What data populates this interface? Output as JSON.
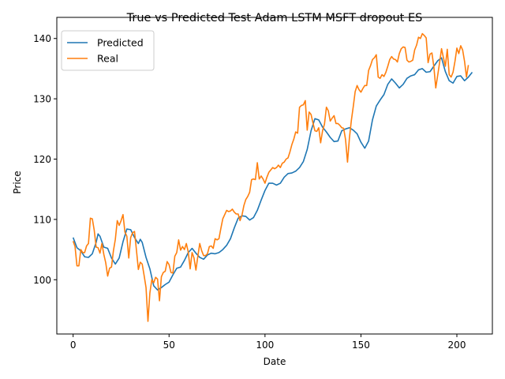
{
  "chart_data": {
    "type": "line",
    "title": "True vs Predicted Test  Adam LSTM MSFT dropout ES",
    "xlabel": "Date",
    "ylabel": "Price",
    "xlim": [
      -8.5,
      218.5
    ],
    "ylim": [
      91.0,
      143.5
    ],
    "xticks": [
      0,
      50,
      100,
      150,
      200
    ],
    "yticks": [
      100,
      110,
      120,
      130,
      140
    ],
    "grid": false,
    "legend_position": "upper-left",
    "colors": {
      "predicted": "#1f77b4",
      "real": "#ff7f0e"
    },
    "series": [
      {
        "name": "Predicted",
        "color": "#1f77b4",
        "points": [
          [
            0,
            107.0
          ],
          [
            2,
            105.3
          ],
          [
            4,
            104.8
          ],
          [
            6,
            103.8
          ],
          [
            8,
            103.7
          ],
          [
            10,
            104.3
          ],
          [
            12,
            106.2
          ],
          [
            13,
            107.6
          ],
          [
            14,
            107.2
          ],
          [
            16,
            105.4
          ],
          [
            18,
            105.2
          ],
          [
            20,
            103.6
          ],
          [
            22,
            102.6
          ],
          [
            24,
            103.6
          ],
          [
            26,
            106.3
          ],
          [
            28,
            108.4
          ],
          [
            30,
            108.3
          ],
          [
            32,
            107.0
          ],
          [
            34,
            106.0
          ],
          [
            35,
            106.7
          ],
          [
            36,
            106.2
          ],
          [
            38,
            103.7
          ],
          [
            40,
            101.8
          ],
          [
            42,
            99.0
          ],
          [
            44,
            98.3
          ],
          [
            46,
            98.7
          ],
          [
            48,
            99.2
          ],
          [
            50,
            99.6
          ],
          [
            52,
            100.8
          ],
          [
            54,
            101.9
          ],
          [
            56,
            102.1
          ],
          [
            58,
            103.2
          ],
          [
            60,
            104.5
          ],
          [
            62,
            105.2
          ],
          [
            64,
            104.4
          ],
          [
            66,
            103.7
          ],
          [
            68,
            103.4
          ],
          [
            70,
            104.1
          ],
          [
            72,
            104.4
          ],
          [
            74,
            104.3
          ],
          [
            76,
            104.5
          ],
          [
            78,
            105.0
          ],
          [
            80,
            105.7
          ],
          [
            82,
            106.8
          ],
          [
            84,
            108.6
          ],
          [
            86,
            110.2
          ],
          [
            88,
            110.6
          ],
          [
            90,
            110.5
          ],
          [
            92,
            109.9
          ],
          [
            94,
            110.3
          ],
          [
            96,
            111.5
          ],
          [
            98,
            113.2
          ],
          [
            100,
            114.8
          ],
          [
            102,
            116.0
          ],
          [
            104,
            116.0
          ],
          [
            106,
            115.7
          ],
          [
            108,
            116.0
          ],
          [
            110,
            117.0
          ],
          [
            112,
            117.6
          ],
          [
            114,
            117.7
          ],
          [
            116,
            118.0
          ],
          [
            118,
            118.6
          ],
          [
            120,
            119.6
          ],
          [
            122,
            121.6
          ],
          [
            124,
            124.7
          ],
          [
            126,
            126.7
          ],
          [
            128,
            126.5
          ],
          [
            130,
            125.3
          ],
          [
            132,
            124.5
          ],
          [
            134,
            123.6
          ],
          [
            136,
            122.9
          ],
          [
            138,
            123.0
          ],
          [
            140,
            124.7
          ],
          [
            142,
            125.0
          ],
          [
            144,
            125.2
          ],
          [
            146,
            124.8
          ],
          [
            148,
            124.2
          ],
          [
            150,
            122.8
          ],
          [
            152,
            121.8
          ],
          [
            154,
            123.0
          ],
          [
            156,
            126.5
          ],
          [
            158,
            128.8
          ],
          [
            160,
            129.8
          ],
          [
            162,
            130.7
          ],
          [
            164,
            132.4
          ],
          [
            166,
            133.3
          ],
          [
            168,
            132.6
          ],
          [
            170,
            131.8
          ],
          [
            172,
            132.4
          ],
          [
            174,
            133.4
          ],
          [
            176,
            133.8
          ],
          [
            178,
            134.0
          ],
          [
            180,
            134.8
          ],
          [
            182,
            135.0
          ],
          [
            184,
            134.4
          ],
          [
            186,
            134.5
          ],
          [
            188,
            135.4
          ],
          [
            190,
            136.3
          ],
          [
            192,
            136.8
          ],
          [
            194,
            134.5
          ],
          [
            196,
            133.0
          ],
          [
            198,
            132.6
          ],
          [
            200,
            133.7
          ],
          [
            202,
            133.8
          ],
          [
            204,
            133.0
          ],
          [
            206,
            133.6
          ],
          [
            208,
            134.4
          ]
        ]
      },
      {
        "name": "Real",
        "color": "#ff7f0e",
        "points": [
          [
            0,
            106.4
          ],
          [
            1,
            105.5
          ],
          [
            2,
            102.3
          ],
          [
            3,
            102.3
          ],
          [
            4,
            105.0
          ],
          [
            5,
            104.5
          ],
          [
            6,
            104.5
          ],
          [
            7,
            105.6
          ],
          [
            8,
            106.0
          ],
          [
            9,
            110.2
          ],
          [
            10,
            110.1
          ],
          [
            11,
            108.2
          ],
          [
            12,
            105.4
          ],
          [
            13,
            105.3
          ],
          [
            14,
            104.4
          ],
          [
            15,
            106.0
          ],
          [
            16,
            104.2
          ],
          [
            17,
            102.8
          ],
          [
            18,
            100.6
          ],
          [
            19,
            101.9
          ],
          [
            20,
            102.1
          ],
          [
            21,
            104.8
          ],
          [
            22,
            106.7
          ],
          [
            23,
            109.8
          ],
          [
            24,
            109.0
          ],
          [
            25,
            109.8
          ],
          [
            26,
            110.8
          ],
          [
            27,
            107.9
          ],
          [
            28,
            107.2
          ],
          [
            29,
            103.6
          ],
          [
            30,
            107.0
          ],
          [
            31,
            107.8
          ],
          [
            32,
            108.0
          ],
          [
            33,
            104.9
          ],
          [
            34,
            101.7
          ],
          [
            35,
            102.9
          ],
          [
            36,
            102.6
          ],
          [
            37,
            100.7
          ],
          [
            38,
            98.7
          ],
          [
            39,
            93.1
          ],
          [
            40,
            97.8
          ],
          [
            41,
            100.0
          ],
          [
            42,
            99.5
          ],
          [
            43,
            100.4
          ],
          [
            44,
            100.1
          ],
          [
            45,
            96.5
          ],
          [
            46,
            100.5
          ],
          [
            47,
            101.2
          ],
          [
            48,
            101.4
          ],
          [
            49,
            103.0
          ],
          [
            50,
            102.5
          ],
          [
            51,
            101.2
          ],
          [
            52,
            101.1
          ],
          [
            53,
            103.9
          ],
          [
            54,
            104.5
          ],
          [
            55,
            106.6
          ],
          [
            56,
            104.9
          ],
          [
            57,
            105.5
          ],
          [
            58,
            105.0
          ],
          [
            59,
            106.0
          ],
          [
            60,
            104.6
          ],
          [
            61,
            101.8
          ],
          [
            62,
            104.5
          ],
          [
            63,
            103.6
          ],
          [
            64,
            101.6
          ],
          [
            65,
            103.9
          ],
          [
            66,
            106.0
          ],
          [
            67,
            104.8
          ],
          [
            68,
            104.0
          ],
          [
            69,
            104.0
          ],
          [
            70,
            104.3
          ],
          [
            71,
            105.5
          ],
          [
            72,
            105.6
          ],
          [
            73,
            105.2
          ],
          [
            74,
            106.8
          ],
          [
            75,
            106.6
          ],
          [
            76,
            106.8
          ],
          [
            77,
            108.5
          ],
          [
            78,
            110.1
          ],
          [
            79,
            110.8
          ],
          [
            80,
            111.5
          ],
          [
            81,
            111.3
          ],
          [
            82,
            111.4
          ],
          [
            83,
            111.7
          ],
          [
            84,
            111.2
          ],
          [
            85,
            110.9
          ],
          [
            86,
            110.9
          ],
          [
            87,
            109.8
          ],
          [
            88,
            110.7
          ],
          [
            89,
            112.3
          ],
          [
            90,
            113.3
          ],
          [
            91,
            113.8
          ],
          [
            92,
            114.5
          ],
          [
            93,
            116.6
          ],
          [
            94,
            116.7
          ],
          [
            95,
            116.6
          ],
          [
            96,
            119.4
          ],
          [
            97,
            116.7
          ],
          [
            98,
            117.2
          ],
          [
            99,
            116.7
          ],
          [
            100,
            116.0
          ],
          [
            101,
            117.0
          ],
          [
            102,
            117.8
          ],
          [
            103,
            118.2
          ],
          [
            104,
            118.6
          ],
          [
            105,
            118.4
          ],
          [
            106,
            118.6
          ],
          [
            107,
            119.0
          ],
          [
            108,
            118.6
          ],
          [
            109,
            119.3
          ],
          [
            110,
            119.5
          ],
          [
            111,
            120.0
          ],
          [
            112,
            120.2
          ],
          [
            113,
            121.2
          ],
          [
            114,
            122.4
          ],
          [
            115,
            123.3
          ],
          [
            116,
            124.5
          ],
          [
            117,
            124.3
          ],
          [
            118,
            128.6
          ],
          [
            119,
            128.9
          ],
          [
            120,
            129.0
          ],
          [
            121,
            129.7
          ],
          [
            122,
            124.8
          ],
          [
            123,
            127.8
          ],
          [
            124,
            127.4
          ],
          [
            125,
            126.0
          ],
          [
            126,
            124.7
          ],
          [
            127,
            124.6
          ],
          [
            128,
            125.2
          ],
          [
            129,
            122.7
          ],
          [
            130,
            124.7
          ],
          [
            131,
            125.8
          ],
          [
            132,
            128.6
          ],
          [
            133,
            128.0
          ],
          [
            134,
            126.3
          ],
          [
            135,
            126.8
          ],
          [
            136,
            127.2
          ],
          [
            137,
            125.9
          ],
          [
            138,
            125.9
          ],
          [
            139,
            125.6
          ],
          [
            140,
            125.2
          ],
          [
            141,
            125.1
          ],
          [
            142,
            123.2
          ],
          [
            143,
            119.5
          ],
          [
            144,
            123.5
          ],
          [
            145,
            126.4
          ],
          [
            146,
            128.7
          ],
          [
            147,
            131.2
          ],
          [
            148,
            132.2
          ],
          [
            149,
            131.5
          ],
          [
            150,
            131.1
          ],
          [
            151,
            131.7
          ],
          [
            152,
            132.2
          ],
          [
            153,
            132.2
          ],
          [
            154,
            134.7
          ],
          [
            155,
            135.5
          ],
          [
            156,
            136.5
          ],
          [
            157,
            136.8
          ],
          [
            158,
            137.3
          ],
          [
            159,
            133.6
          ],
          [
            160,
            133.4
          ],
          [
            161,
            134.0
          ],
          [
            162,
            133.7
          ],
          [
            163,
            134.4
          ],
          [
            164,
            135.4
          ],
          [
            165,
            136.5
          ],
          [
            166,
            137.0
          ],
          [
            167,
            136.6
          ],
          [
            168,
            136.5
          ],
          [
            169,
            136.1
          ],
          [
            170,
            137.5
          ],
          [
            171,
            138.3
          ],
          [
            172,
            138.6
          ],
          [
            173,
            138.5
          ],
          [
            174,
            136.4
          ],
          [
            175,
            136.1
          ],
          [
            176,
            136.2
          ],
          [
            177,
            136.4
          ],
          [
            178,
            138.1
          ],
          [
            179,
            138.9
          ],
          [
            180,
            140.2
          ],
          [
            181,
            140.0
          ],
          [
            182,
            140.8
          ],
          [
            183,
            140.5
          ],
          [
            184,
            140.1
          ],
          [
            185,
            136.0
          ],
          [
            186,
            137.4
          ],
          [
            187,
            137.6
          ],
          [
            188,
            135.3
          ],
          [
            189,
            131.8
          ],
          [
            190,
            133.9
          ],
          [
            191,
            136.0
          ],
          [
            192,
            138.3
          ],
          [
            193,
            136.8
          ],
          [
            194,
            135.4
          ],
          [
            195,
            138.2
          ],
          [
            196,
            134.0
          ],
          [
            197,
            133.6
          ],
          [
            198,
            134.4
          ],
          [
            199,
            136.2
          ],
          [
            200,
            138.4
          ],
          [
            201,
            137.5
          ],
          [
            202,
            138.8
          ],
          [
            203,
            138.1
          ],
          [
            204,
            136.2
          ],
          [
            205,
            133.6
          ],
          [
            206,
            135.6
          ]
        ]
      }
    ]
  }
}
